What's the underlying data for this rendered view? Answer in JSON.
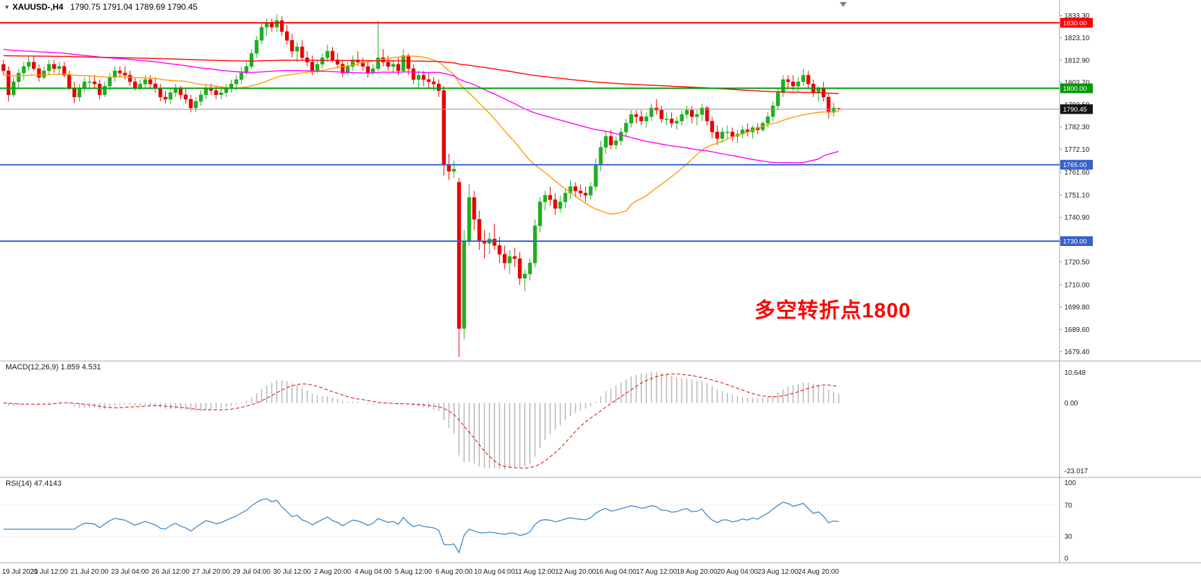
{
  "window": {
    "symbol": "XAUUSD-,H4",
    "ohlc": "1790.75 1791.04 1789.69 1790.45"
  },
  "annotation": {
    "text": "多空转折点1800",
    "color": "#ff0000"
  },
  "colors": {
    "bull": "#1fae1f",
    "bear": "#e80000",
    "price_line": "#9a9a9a",
    "price_tag_bg": "#141414",
    "macd_hist": "#b7b7b7",
    "macd_signal": "#e00000",
    "rsi": "#3e86c8",
    "separator": "#a8a8a8",
    "text": "#1a1a1a",
    "shift_marker": "#7a7f88"
  },
  "chart_data": {
    "type": "candlestick",
    "symbol": "XAUUSD-",
    "timeframe": "H4",
    "current": {
      "open": 1790.75,
      "high": 1791.04,
      "low": 1789.69,
      "close": 1790.45
    },
    "price_range": {
      "top": 1836.0,
      "bottom": 1677.0
    },
    "y_ticks": [
      "1833.30",
      "1823.10",
      "1812.90",
      "1802.70",
      "1792.50",
      "1782.30",
      "1772.10",
      "1761.60",
      "1751.10",
      "1740.90",
      "1730.70",
      "1720.50",
      "1710.00",
      "1699.80",
      "1689.60",
      "1679.40"
    ],
    "x_labels": [
      {
        "i": 1,
        "t": "19 Jul 2021"
      },
      {
        "i": 9,
        "t": "20 Jul 12:00"
      },
      {
        "i": 17,
        "t": "21 Jul 20:00"
      },
      {
        "i": 25,
        "t": "23 Jul 04:00"
      },
      {
        "i": 33,
        "t": "26 Jul 12:00"
      },
      {
        "i": 41,
        "t": "27 Jul 20:00"
      },
      {
        "i": 49,
        "t": "29 Jul 04:00"
      },
      {
        "i": 57,
        "t": "30 Jul 12:00"
      },
      {
        "i": 65,
        "t": "2 Aug 20:00"
      },
      {
        "i": 73,
        "t": "4 Aug 04:00"
      },
      {
        "i": 81,
        "t": "5 Aug 12:00"
      },
      {
        "i": 89,
        "t": "6 Aug 20:00"
      },
      {
        "i": 97,
        "t": "10 Aug 04:00"
      },
      {
        "i": 105,
        "t": "11 Aug 12:00"
      },
      {
        "i": 113,
        "t": "12 Aug 20:00"
      },
      {
        "i": 121,
        "t": "16 Aug 04:00"
      },
      {
        "i": 129,
        "t": "17 Aug 12:00"
      },
      {
        "i": 137,
        "t": "18 Aug 20:00"
      },
      {
        "i": 145,
        "t": "20 Aug 04:00"
      },
      {
        "i": 153,
        "t": "23 Aug 12:00"
      },
      {
        "i": 161,
        "t": "24 Aug 20:00"
      }
    ],
    "hlines": [
      {
        "price": 1830.0,
        "label": "1830.00",
        "color": "#ff0000",
        "width": 2
      },
      {
        "price": 1800.0,
        "label": "1800.00",
        "color": "#009a00",
        "width": 2
      },
      {
        "price": 1765.0,
        "label": "1765.00",
        "color": "#3a5fcd",
        "width": 2
      },
      {
        "price": 1730.0,
        "label": "1730.00",
        "color": "#3a5fcd",
        "width": 2
      }
    ],
    "price_line": {
      "price": 1790.45,
      "label": "1790.45"
    },
    "moving_averages": [
      {
        "period": 34,
        "seed": 1806,
        "color": "#ff9900"
      },
      {
        "period": 72,
        "seed": 1818,
        "color": "#ff00ff"
      },
      {
        "period": 250,
        "seed": 1815,
        "color": "#ff0000"
      }
    ],
    "macd": {
      "label": "MACD(12,26,9) 1.859 4.531",
      "fast": 12,
      "slow": 26,
      "signal": 9,
      "axis_labels": [
        "10.648",
        "0.00",
        "-23.017"
      ]
    },
    "rsi": {
      "label": "RSI(14) 47.4143",
      "period": 14,
      "levels": [
        "100",
        "70",
        "30",
        "0"
      ],
      "level_lines": [
        70,
        30
      ]
    },
    "candles": [
      [
        1811,
        1813,
        1806,
        1808
      ],
      [
        1808,
        1810,
        1794,
        1797
      ],
      [
        1797,
        1805,
        1796,
        1803
      ],
      [
        1803,
        1809,
        1800,
        1807
      ],
      [
        1807,
        1812,
        1804,
        1810
      ],
      [
        1810,
        1815,
        1808,
        1812
      ],
      [
        1812,
        1815,
        1808,
        1809
      ],
      [
        1809,
        1811,
        1803,
        1805
      ],
      [
        1805,
        1810,
        1804,
        1808
      ],
      [
        1808,
        1813,
        1806,
        1811
      ],
      [
        1811,
        1813,
        1807,
        1809
      ],
      [
        1809,
        1812,
        1806,
        1810
      ],
      [
        1810,
        1812,
        1805,
        1806
      ],
      [
        1806,
        1808,
        1799,
        1800
      ],
      [
        1800,
        1803,
        1793,
        1796
      ],
      [
        1796,
        1802,
        1794,
        1800
      ],
      [
        1800,
        1805,
        1798,
        1803
      ],
      [
        1803,
        1806,
        1800,
        1803
      ],
      [
        1803,
        1806,
        1800,
        1802
      ],
      [
        1802,
        1804,
        1795,
        1797
      ],
      [
        1797,
        1803,
        1796,
        1801
      ],
      [
        1801,
        1807,
        1799,
        1805
      ],
      [
        1805,
        1810,
        1803,
        1808
      ],
      [
        1808,
        1810,
        1805,
        1807
      ],
      [
        1807,
        1810,
        1804,
        1806
      ],
      [
        1806,
        1808,
        1801,
        1803
      ],
      [
        1803,
        1805,
        1799,
        1800
      ],
      [
        1800,
        1804,
        1799,
        1802
      ],
      [
        1802,
        1806,
        1800,
        1804
      ],
      [
        1804,
        1806,
        1800,
        1802
      ],
      [
        1802,
        1805,
        1798,
        1800
      ],
      [
        1800,
        1802,
        1794,
        1796
      ],
      [
        1796,
        1799,
        1793,
        1795
      ],
      [
        1795,
        1800,
        1793,
        1798
      ],
      [
        1798,
        1802,
        1796,
        1800
      ],
      [
        1800,
        1801,
        1795,
        1797
      ],
      [
        1797,
        1800,
        1793,
        1795
      ],
      [
        1795,
        1797,
        1789,
        1791
      ],
      [
        1791,
        1796,
        1789,
        1794
      ],
      [
        1794,
        1799,
        1792,
        1797
      ],
      [
        1797,
        1802,
        1795,
        1800
      ],
      [
        1800,
        1802,
        1797,
        1799
      ],
      [
        1799,
        1801,
        1795,
        1797
      ],
      [
        1797,
        1800,
        1795,
        1798
      ],
      [
        1798,
        1802,
        1796,
        1800
      ],
      [
        1800,
        1804,
        1798,
        1802
      ],
      [
        1802,
        1806,
        1799,
        1804
      ],
      [
        1804,
        1810,
        1802,
        1807
      ],
      [
        1807,
        1812,
        1806,
        1810
      ],
      [
        1810,
        1818,
        1809,
        1816
      ],
      [
        1816,
        1824,
        1814,
        1822
      ],
      [
        1822,
        1830,
        1820,
        1828
      ],
      [
        1828,
        1832,
        1824,
        1830
      ],
      [
        1830,
        1832,
        1826,
        1828
      ],
      [
        1828,
        1834,
        1826,
        1831
      ],
      [
        1831,
        1833,
        1824,
        1826
      ],
      [
        1826,
        1829,
        1820,
        1822
      ],
      [
        1822,
        1825,
        1814,
        1817
      ],
      [
        1817,
        1821,
        1812,
        1819
      ],
      [
        1819,
        1822,
        1813,
        1814
      ],
      [
        1814,
        1817,
        1810,
        1812
      ],
      [
        1812,
        1815,
        1806,
        1808
      ],
      [
        1808,
        1813,
        1807,
        1811
      ],
      [
        1811,
        1816,
        1809,
        1814
      ],
      [
        1814,
        1820,
        1812,
        1817
      ],
      [
        1817,
        1819,
        1812,
        1813
      ],
      [
        1813,
        1816,
        1809,
        1811
      ],
      [
        1811,
        1813,
        1805,
        1807
      ],
      [
        1807,
        1812,
        1806,
        1810
      ],
      [
        1810,
        1815,
        1808,
        1813
      ],
      [
        1813,
        1817,
        1810,
        1812
      ],
      [
        1812,
        1814,
        1808,
        1810
      ],
      [
        1810,
        1812,
        1805,
        1807
      ],
      [
        1807,
        1811,
        1806,
        1809
      ],
      [
        1809,
        1831,
        1808,
        1814
      ],
      [
        1814,
        1818,
        1810,
        1812
      ],
      [
        1812,
        1815,
        1808,
        1810
      ],
      [
        1810,
        1813,
        1807,
        1811
      ],
      [
        1811,
        1814,
        1806,
        1808
      ],
      [
        1808,
        1818,
        1807,
        1815
      ],
      [
        1815,
        1816,
        1806,
        1809
      ],
      [
        1809,
        1811,
        1802,
        1804
      ],
      [
        1804,
        1808,
        1800,
        1806
      ],
      [
        1806,
        1808,
        1801,
        1804
      ],
      [
        1804,
        1807,
        1800,
        1803
      ],
      [
        1803,
        1805,
        1799,
        1802
      ],
      [
        1802,
        1804,
        1796,
        1799
      ],
      [
        1799,
        1801,
        1760,
        1765
      ],
      [
        1765,
        1770,
        1758,
        1762
      ],
      [
        1762,
        1767,
        1759,
        1763
      ],
      [
        1757,
        1759,
        1677,
        1690
      ],
      [
        1690,
        1735,
        1685,
        1730
      ],
      [
        1730,
        1756,
        1728,
        1750
      ],
      [
        1750,
        1753,
        1735,
        1740
      ],
      [
        1740,
        1744,
        1726,
        1730
      ],
      [
        1730,
        1735,
        1722,
        1729
      ],
      [
        1729,
        1734,
        1724,
        1731
      ],
      [
        1731,
        1738,
        1726,
        1728
      ],
      [
        1728,
        1732,
        1720,
        1724
      ],
      [
        1724,
        1728,
        1717,
        1720
      ],
      [
        1720,
        1726,
        1715,
        1723
      ],
      [
        1723,
        1727,
        1718,
        1722
      ],
      [
        1722,
        1725,
        1710,
        1713
      ],
      [
        1713,
        1717,
        1707,
        1715
      ],
      [
        1715,
        1722,
        1712,
        1720
      ],
      [
        1720,
        1740,
        1718,
        1737
      ],
      [
        1737,
        1750,
        1734,
        1748
      ],
      [
        1748,
        1753,
        1744,
        1751
      ],
      [
        1751,
        1755,
        1746,
        1749
      ],
      [
        1749,
        1752,
        1742,
        1745
      ],
      [
        1745,
        1751,
        1743,
        1748
      ],
      [
        1748,
        1754,
        1745,
        1752
      ],
      [
        1752,
        1758,
        1749,
        1755
      ],
      [
        1755,
        1757,
        1750,
        1753
      ],
      [
        1753,
        1756,
        1750,
        1752
      ],
      [
        1752,
        1755,
        1748,
        1751
      ],
      [
        1751,
        1757,
        1749,
        1755
      ],
      [
        1755,
        1768,
        1753,
        1765
      ],
      [
        1765,
        1776,
        1762,
        1773
      ],
      [
        1773,
        1780,
        1770,
        1778
      ],
      [
        1778,
        1781,
        1772,
        1774
      ],
      [
        1774,
        1778,
        1772,
        1776
      ],
      [
        1776,
        1782,
        1774,
        1780
      ],
      [
        1780,
        1786,
        1778,
        1784
      ],
      [
        1784,
        1790,
        1782,
        1788
      ],
      [
        1788,
        1790,
        1784,
        1787
      ],
      [
        1787,
        1790,
        1783,
        1785
      ],
      [
        1785,
        1789,
        1782,
        1787
      ],
      [
        1787,
        1793,
        1785,
        1791
      ],
      [
        1791,
        1795,
        1788,
        1790
      ],
      [
        1790,
        1792,
        1784,
        1786
      ],
      [
        1786,
        1789,
        1783,
        1786
      ],
      [
        1786,
        1789,
        1782,
        1784
      ],
      [
        1784,
        1787,
        1781,
        1785
      ],
      [
        1785,
        1790,
        1783,
        1788
      ],
      [
        1788,
        1792,
        1786,
        1790
      ],
      [
        1790,
        1792,
        1784,
        1787
      ],
      [
        1787,
        1790,
        1783,
        1788
      ],
      [
        1788,
        1793,
        1785,
        1791
      ],
      [
        1791,
        1792,
        1783,
        1785
      ],
      [
        1785,
        1787,
        1777,
        1780
      ],
      [
        1780,
        1783,
        1774,
        1777
      ],
      [
        1777,
        1782,
        1775,
        1780
      ],
      [
        1780,
        1783,
        1777,
        1780
      ],
      [
        1780,
        1782,
        1776,
        1778
      ],
      [
        1778,
        1781,
        1775,
        1779
      ],
      [
        1779,
        1783,
        1777,
        1781
      ],
      [
        1781,
        1784,
        1778,
        1780
      ],
      [
        1780,
        1783,
        1777,
        1782
      ],
      [
        1782,
        1784,
        1779,
        1781
      ],
      [
        1781,
        1785,
        1780,
        1784
      ],
      [
        1784,
        1789,
        1782,
        1787
      ],
      [
        1787,
        1794,
        1785,
        1792
      ],
      [
        1792,
        1800,
        1790,
        1798
      ],
      [
        1798,
        1806,
        1796,
        1804
      ],
      [
        1804,
        1806,
        1800,
        1803
      ],
      [
        1803,
        1806,
        1799,
        1801
      ],
      [
        1801,
        1805,
        1798,
        1803
      ],
      [
        1803,
        1809,
        1801,
        1806
      ],
      [
        1806,
        1808,
        1800,
        1802
      ],
      [
        1802,
        1804,
        1796,
        1798
      ],
      [
        1798,
        1801,
        1794,
        1800
      ],
      [
        1800,
        1803,
        1794,
        1796
      ],
      [
        1796,
        1798,
        1786,
        1789
      ],
      [
        1789,
        1793.5,
        1787,
        1791
      ],
      [
        1790.75,
        1791.04,
        1789.69,
        1790.45
      ]
    ]
  }
}
